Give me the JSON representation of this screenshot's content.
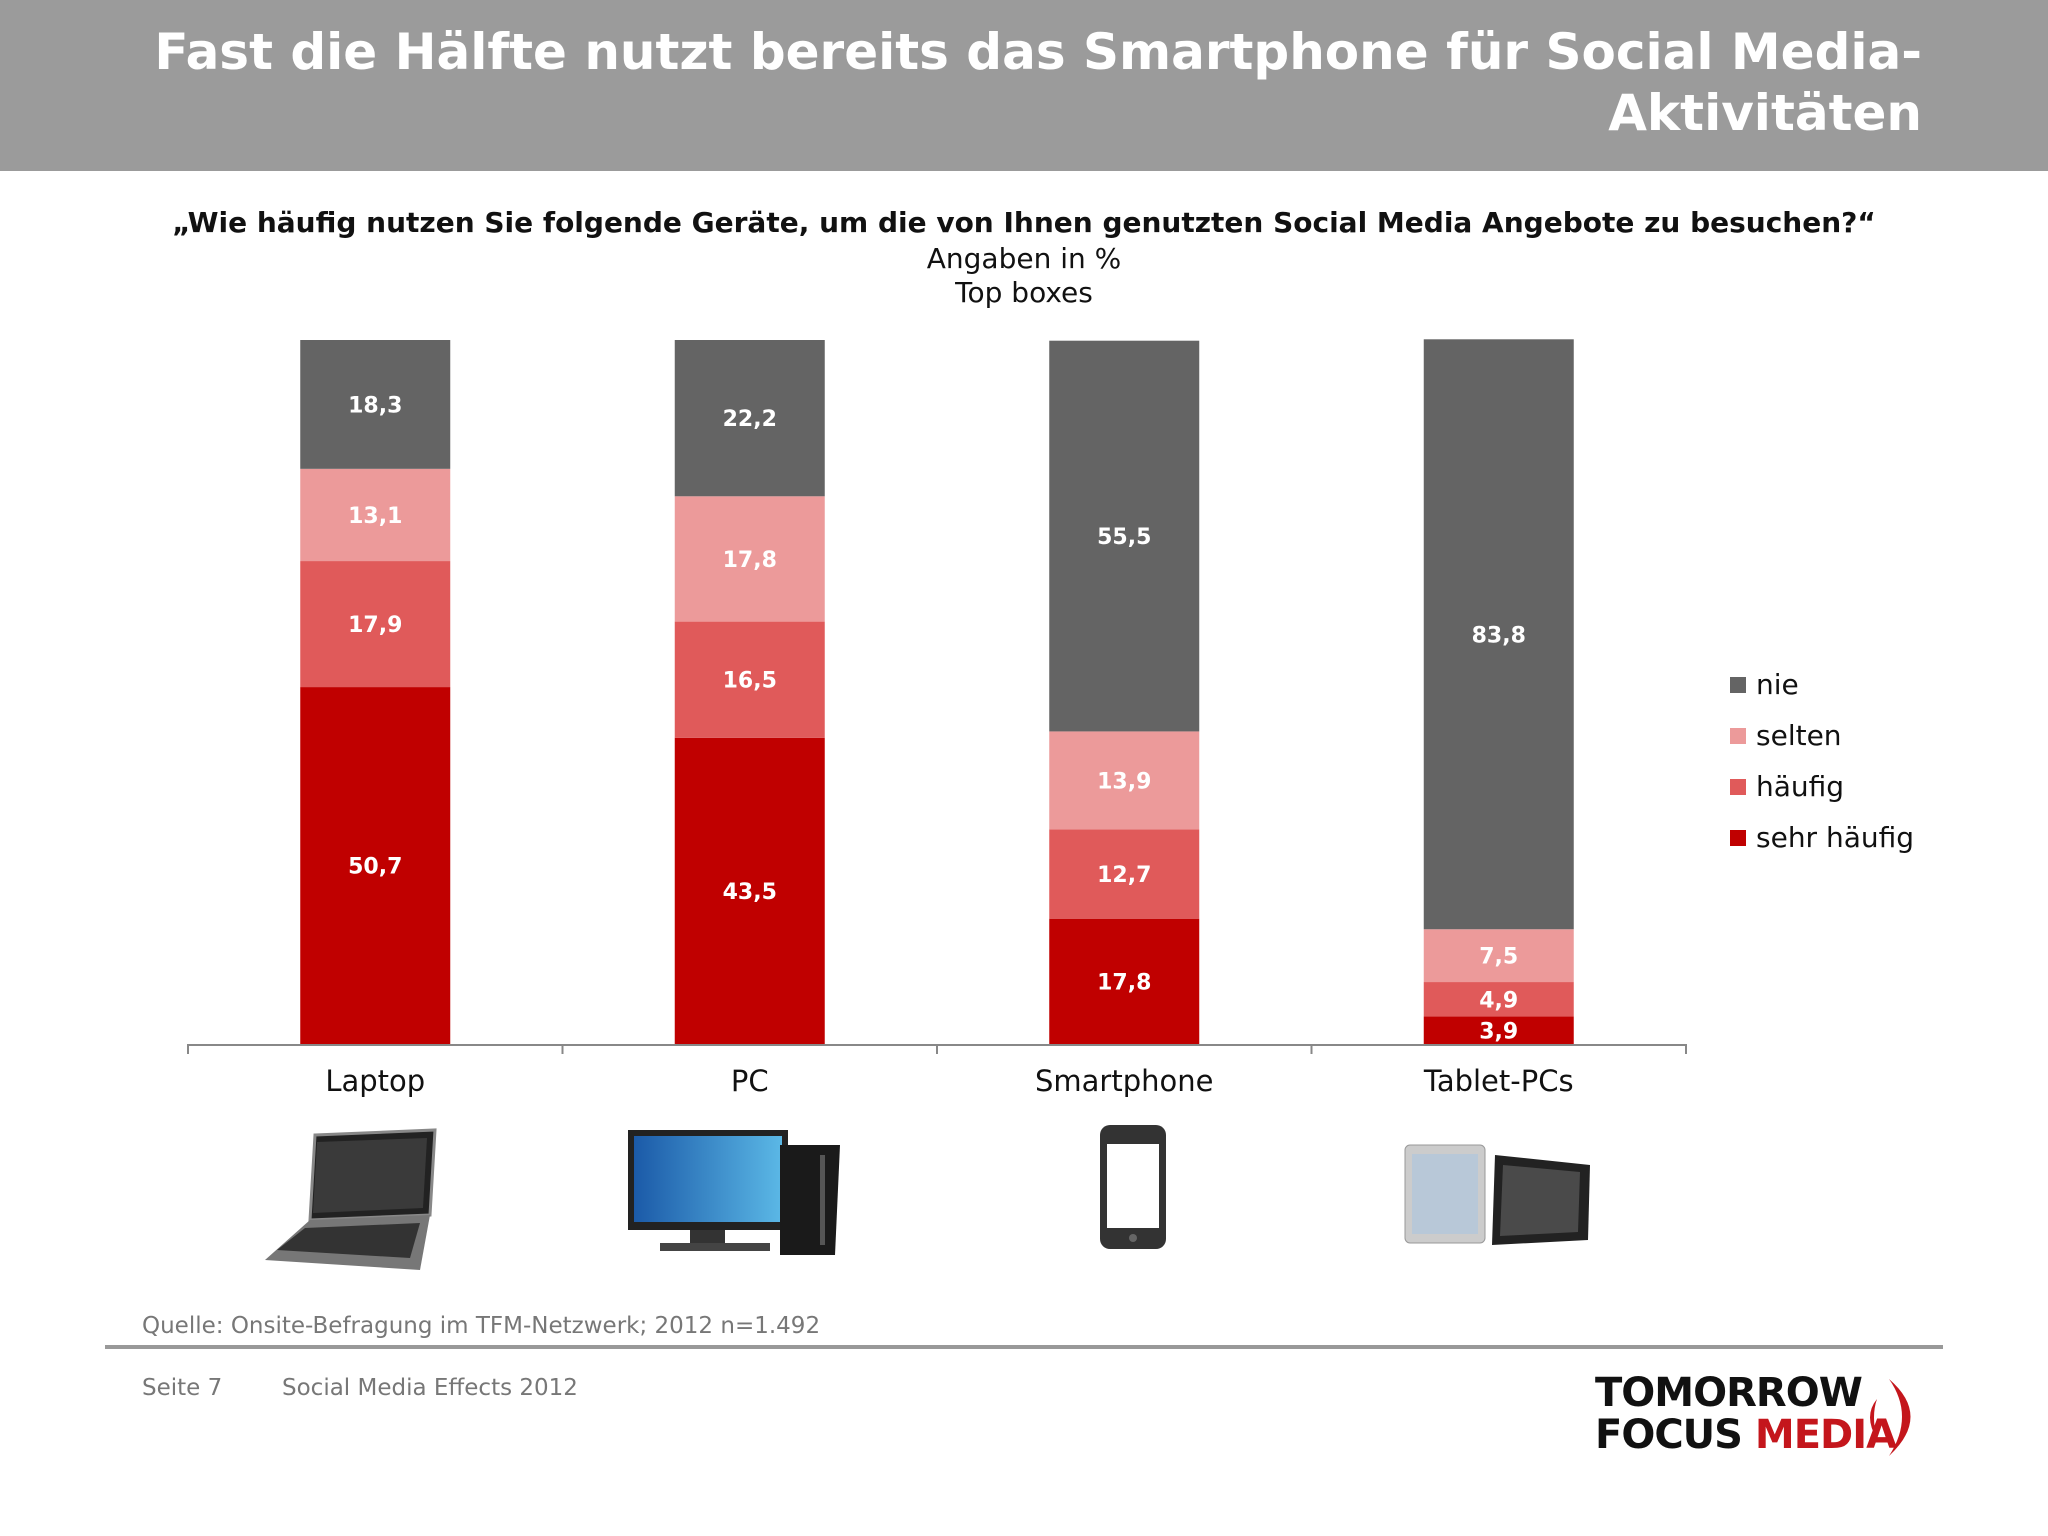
{
  "header": {
    "title_line1": "Fast die Hälfte nutzt bereits das Smartphone für Social Media-",
    "title_line2": "Aktivitäten"
  },
  "question": "„Wie häufig nutzen Sie folgende Geräte, um die von Ihnen genutzten Social Media Angebote zu besuchen?“",
  "subtitle1": "Angaben in %",
  "subtitle2": "Top boxes",
  "chart_data": {
    "type": "bar",
    "stacked": true,
    "categories": [
      "Laptop",
      "PC",
      "Smartphone",
      "Tablet-PCs"
    ],
    "series": [
      {
        "name": "sehr häufig",
        "color": "#c00000",
        "values": [
          50.7,
          43.5,
          17.8,
          3.9
        ],
        "labels": [
          "50,7",
          "43,5",
          "17,8",
          "3,9"
        ]
      },
      {
        "name": "häufig",
        "color": "#e05a5a",
        "values": [
          17.9,
          16.5,
          12.7,
          4.9
        ],
        "labels": [
          "17,9",
          "16,5",
          "12,7",
          "4,9"
        ]
      },
      {
        "name": "selten",
        "color": "#ec9a9a",
        "values": [
          13.1,
          17.8,
          13.9,
          7.5
        ],
        "labels": [
          "13,1",
          "17,8",
          "13,9",
          "7,5"
        ]
      },
      {
        "name": "nie",
        "color": "#646464",
        "values": [
          18.3,
          22.2,
          55.5,
          83.8
        ],
        "labels": [
          "18,3",
          "22,2",
          "55,5",
          "83,8"
        ]
      }
    ],
    "ylim": [
      0,
      100
    ],
    "grid": false,
    "legend_position": "right",
    "legend_order": [
      "nie",
      "selten",
      "häufig",
      "sehr häufig"
    ],
    "category_icons": [
      "laptop-icon",
      "pc-icon",
      "smartphone-icon",
      "tablet-icon"
    ]
  },
  "footer": {
    "source": "Quelle: Onsite-Befragung im TFM-Netzwerk; 2012 n=1.492",
    "page": "Seite 7",
    "title": "Social Media Effects 2012"
  },
  "logo": {
    "line1": "TOMORROW",
    "line2a": "FOCUS",
    "line2b": "MEDIA"
  }
}
